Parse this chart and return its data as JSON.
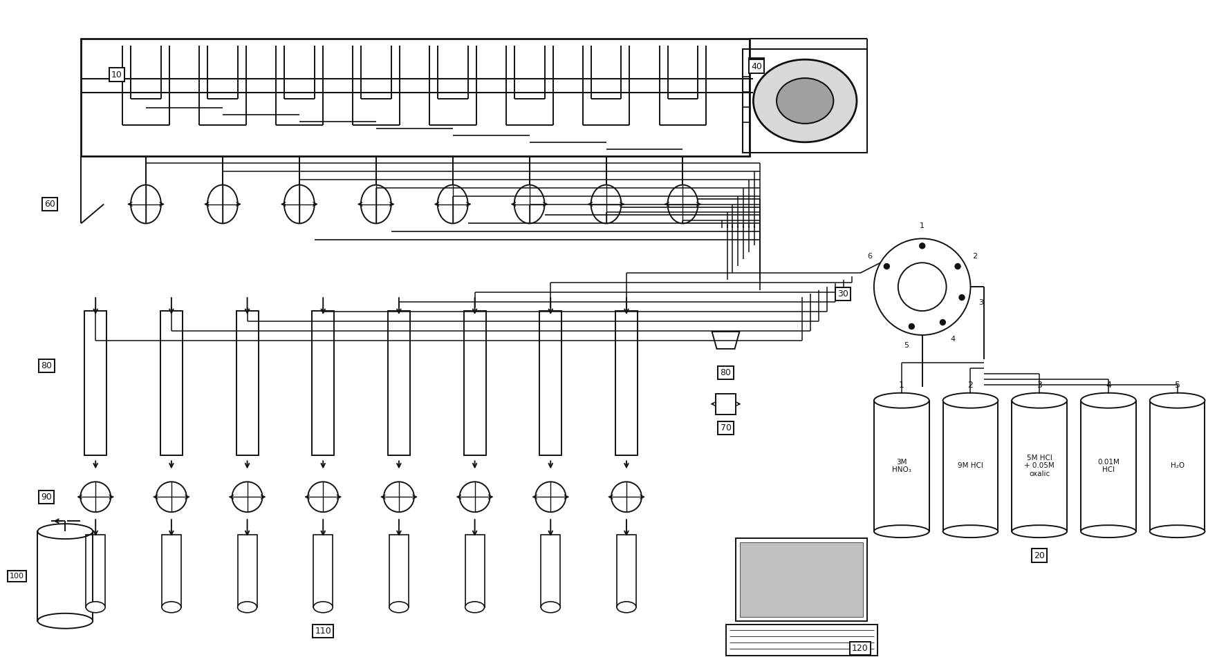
{
  "bg_color": "#ffffff",
  "line_color": "#111111",
  "fig_width": 17.74,
  "fig_height": 9.51,
  "container_texts": [
    "3M\nHNO₃",
    "9M HCl",
    "5M HCl\n+ 0.05M\noxalic",
    "0.01M\nHCl",
    "H₂O"
  ],
  "n_pumps": 8,
  "n_cols": 8
}
